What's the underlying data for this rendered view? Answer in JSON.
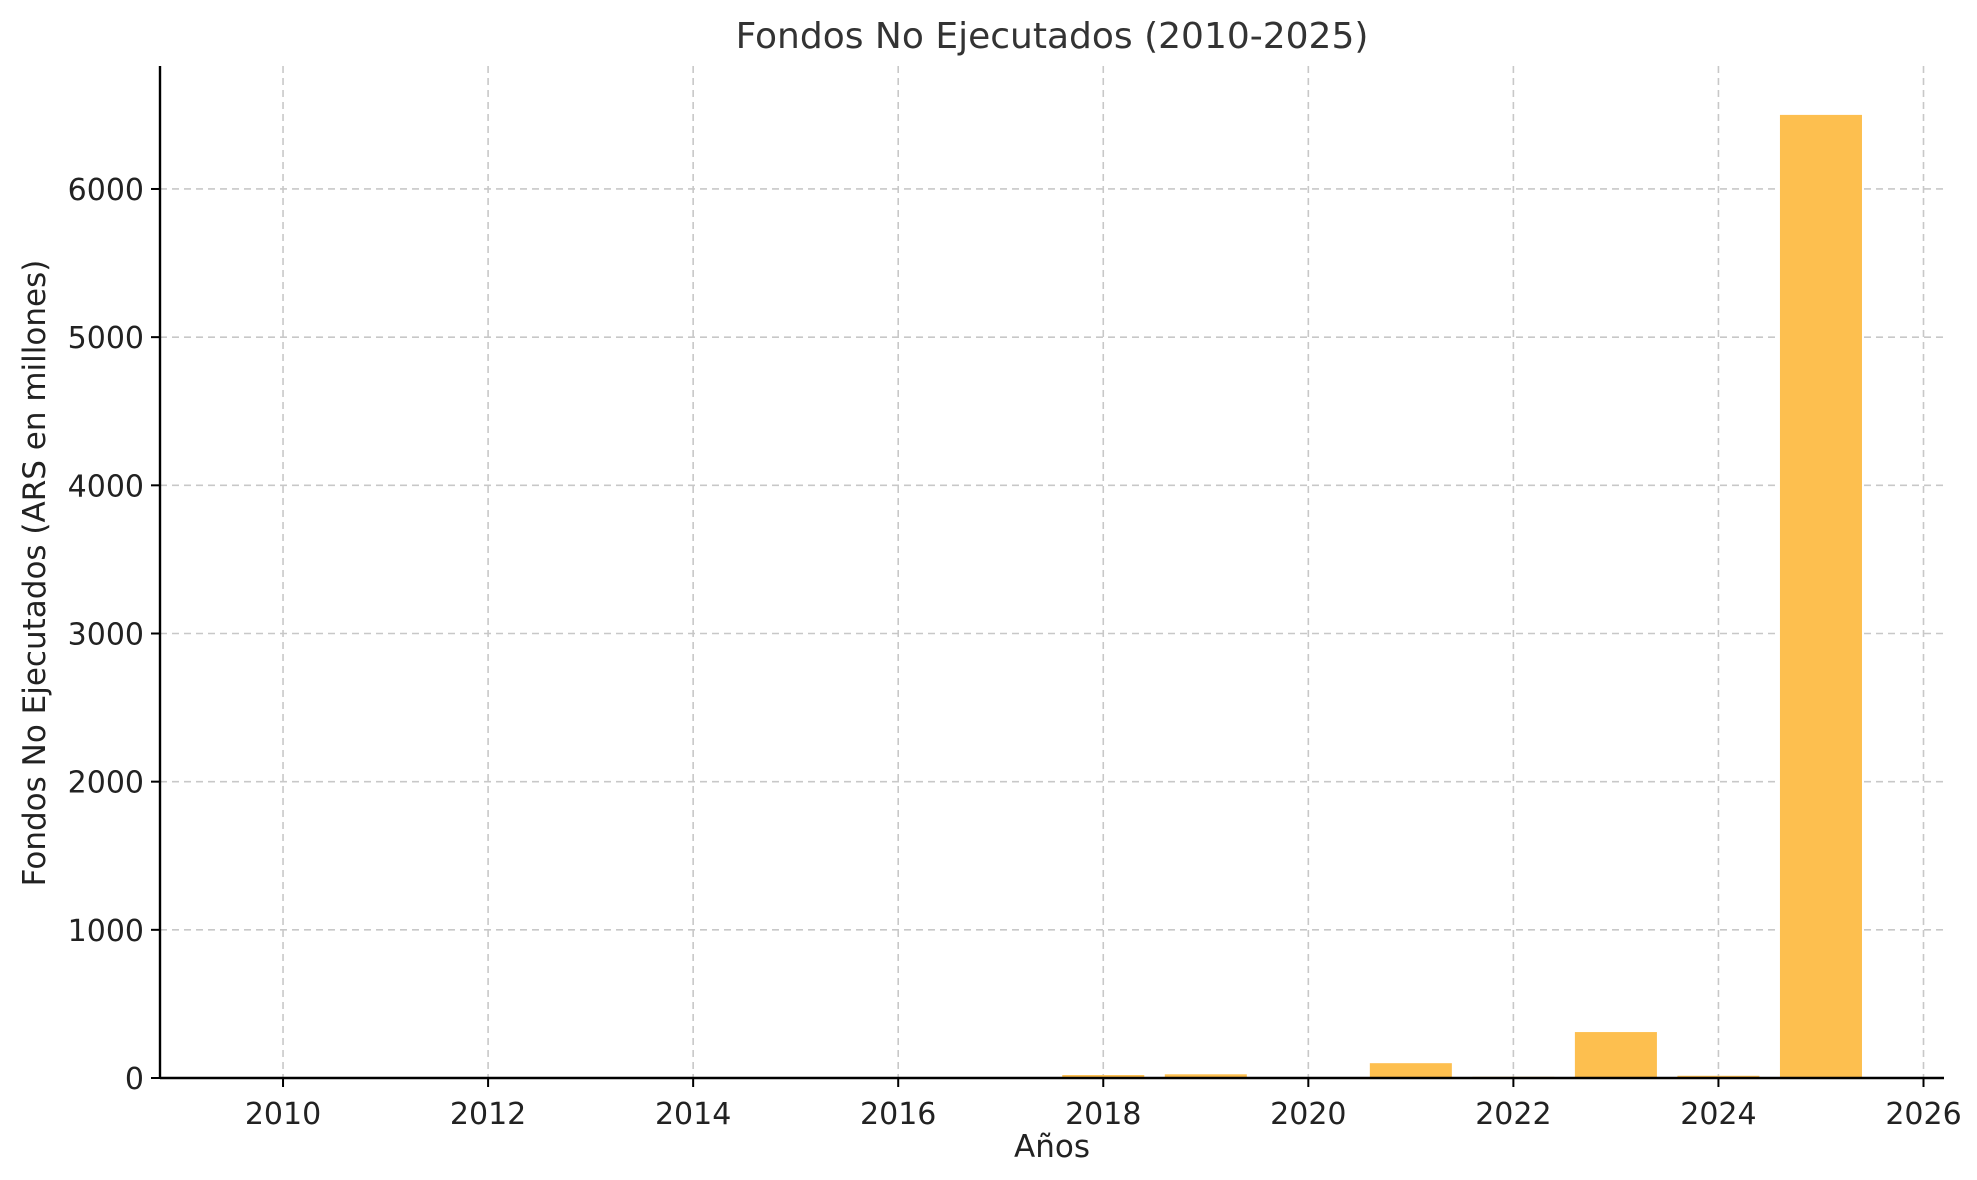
{
  "chart_data": {
    "type": "bar",
    "title": "Fondos No Ejecutados (2010-2025)",
    "xlabel": "Años",
    "ylabel": "Fondos No Ejecutados (ARS en millones)",
    "x": [
      2010,
      2011,
      2012,
      2013,
      2014,
      2015,
      2016,
      2017,
      2018,
      2019,
      2020,
      2021,
      2022,
      2023,
      2024,
      2025
    ],
    "values": [
      0.5,
      0.7,
      1,
      1.5,
      5,
      2,
      3,
      4,
      20,
      25,
      5,
      100,
      8,
      310,
      15,
      6500
    ],
    "xlim": [
      2008.8,
      2026.2
    ],
    "ylim": [
      0,
      6830
    ],
    "x_ticks": [
      2010,
      2012,
      2014,
      2016,
      2018,
      2020,
      2022,
      2024,
      2026
    ],
    "y_ticks": [
      0,
      1000,
      2000,
      3000,
      4000,
      5000,
      6000
    ],
    "bar_width_years": 0.8,
    "bar_color": "#FDBF4F",
    "grid": true
  }
}
